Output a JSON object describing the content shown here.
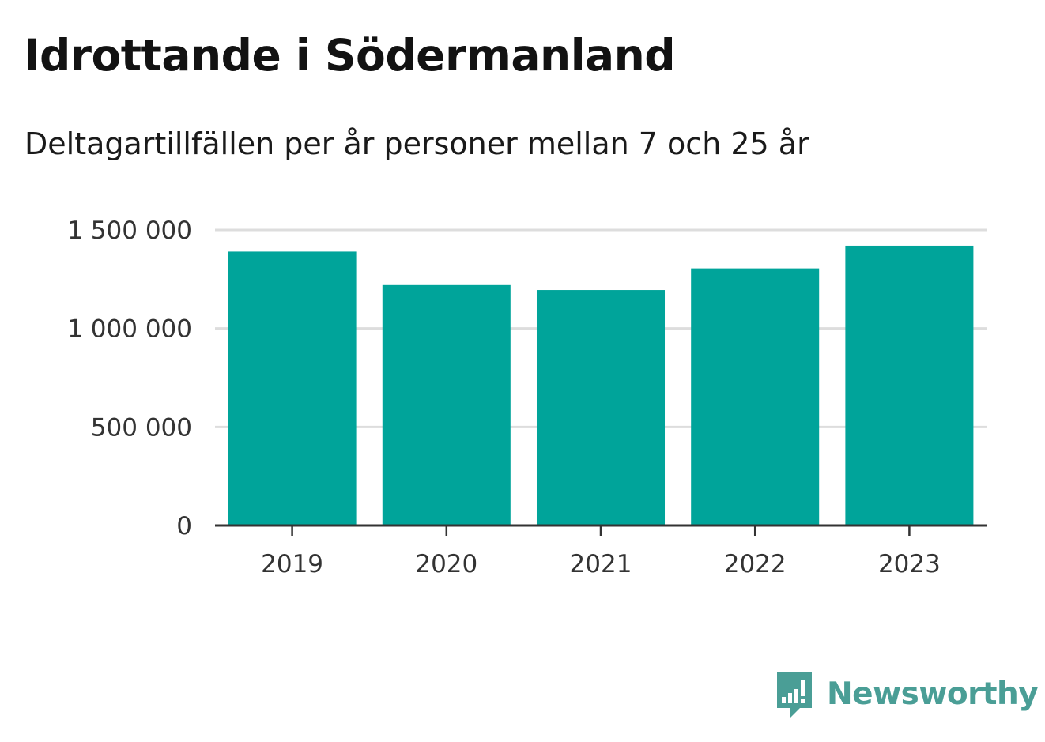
{
  "header": {
    "title": "Idrottande i Södermanland",
    "subtitle": "Deltagartillfällen per år personer mellan 7 och 25 år"
  },
  "brand": {
    "name": "Newsworthy",
    "logo_icon": "newsworthy-logo-icon",
    "color": "#4a9e96"
  },
  "colors": {
    "bar": "#00a49a",
    "grid": "#dddddd",
    "axis": "#333333"
  },
  "chart_data": {
    "type": "bar",
    "title": "Idrottande i Södermanland",
    "subtitle": "Deltagartillfällen per år personer mellan 7 och 25 år",
    "xlabel": "",
    "ylabel": "",
    "categories": [
      "2019",
      "2020",
      "2021",
      "2022",
      "2023"
    ],
    "values": [
      1390000,
      1220000,
      1195000,
      1305000,
      1420000
    ],
    "ylim": [
      0,
      1500000
    ],
    "yticks": [
      0,
      500000,
      1000000,
      1500000
    ],
    "ytick_labels": [
      "0",
      "500 000",
      "1 000 000",
      "1 500 000"
    ],
    "grid": true,
    "legend": "none"
  }
}
